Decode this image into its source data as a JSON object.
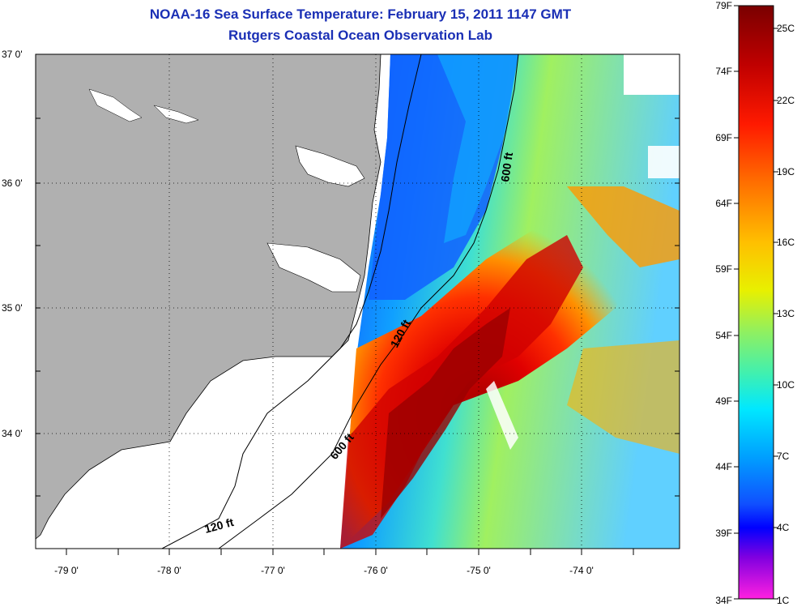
{
  "header": {
    "title": "NOAA-16 Sea Surface Temperature:  February 15, 2011 1147 GMT",
    "subtitle": "Rutgers Coastal Ocean Observation Lab"
  },
  "axes": {
    "lat_labels": [
      "37 0'",
      "36 0'",
      "35 0'",
      "34 0'"
    ],
    "lon_labels": [
      "-79 0'",
      "-78 0'",
      "-77 0'",
      "-76 0'",
      "-75 0'",
      "-74 0'"
    ]
  },
  "contours": {
    "c600_upper": "600 ft",
    "c120_upper": "120 ft",
    "c600_lower": "600 ft",
    "c120_lower": "120 ft"
  },
  "colorbar": {
    "fahrenheit": [
      "79F",
      "74F",
      "69F",
      "64F",
      "59F",
      "54F",
      "49F",
      "44F",
      "39F",
      "34F"
    ],
    "celsius": [
      "25C",
      "22C",
      "19C",
      "16C",
      "13C",
      "10C",
      "7C",
      "4C",
      "1C"
    ]
  },
  "colors": {
    "title": "#1a2fb5",
    "land": "#b0b0b0",
    "cold": "#1030ff",
    "warm": "#ff2000",
    "hot": "#a00000"
  }
}
